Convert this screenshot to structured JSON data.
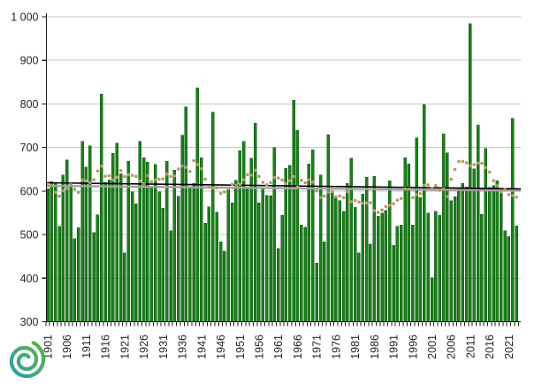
{
  "page": {
    "background": "#ffffff"
  },
  "chart_data": {
    "type": "bar",
    "title": "",
    "xlabel": "",
    "ylabel": "",
    "start_year": 1901,
    "end_year": 2023,
    "values": [
      605,
      622,
      620,
      519,
      637,
      671,
      614,
      490,
      516,
      714,
      655,
      704,
      505,
      545,
      823,
      620,
      626,
      687,
      710,
      640,
      458,
      668,
      598,
      571,
      714,
      676,
      666,
      608,
      661,
      598,
      561,
      668,
      509,
      648,
      588,
      728,
      793,
      608,
      618,
      837,
      676,
      526,
      564,
      781,
      551,
      483,
      462,
      605,
      573,
      625,
      693,
      714,
      606,
      675,
      756,
      573,
      605,
      590,
      589,
      700,
      468,
      544,
      652,
      659,
      808,
      739,
      522,
      517,
      662,
      695,
      435,
      637,
      483,
      729,
      600,
      583,
      578,
      553,
      617,
      675,
      563,
      458,
      593,
      632,
      478,
      634,
      542,
      549,
      556,
      624,
      475,
      519,
      522,
      676,
      662,
      522,
      722,
      585,
      798,
      549,
      401,
      553,
      544,
      731,
      688,
      578,
      587,
      605,
      617,
      609,
      984,
      651,
      752,
      546,
      698,
      608,
      612,
      624,
      600,
      509,
      496,
      767,
      520
    ],
    "y_axis": {
      "min": 300,
      "max": 1000,
      "tick_step": 100,
      "tick_labels": [
        "300",
        "400",
        "500",
        "600",
        "700",
        "800",
        "900",
        "1 000"
      ]
    },
    "x_axis": {
      "label_step": 5,
      "labels": [
        "1901",
        "1906",
        "1911",
        "1916",
        "1921",
        "1926",
        "1931",
        "1936",
        "1941",
        "1946",
        "1951",
        "1956",
        "1961",
        "1966",
        "1971",
        "1976",
        "1981",
        "1986",
        "1991",
        "1996",
        "2001",
        "2006",
        "2011",
        "2016",
        "2021"
      ]
    },
    "series_styles": {
      "bars": {
        "name": "annual-value",
        "color": "#1b7e1b",
        "edge": "#0f5c12"
      },
      "dots": {
        "name": "smoothed-average",
        "color": "#b29a62",
        "window": 11
      },
      "trend_line": {
        "name": "linear-trend",
        "color": "#000000",
        "start_value": 619,
        "end_value": 605
      },
      "second_line": {
        "name": "mean-line",
        "color": "#a3a3a3",
        "start_value": 612,
        "end_value": 601
      }
    },
    "grid": true,
    "gridline_color": "#c6c6c6",
    "axis_color": "#1a1a1a",
    "legend": "none"
  },
  "logo": {
    "label": "spiral-logo",
    "color_start": "#2aa0a8",
    "color_mid": "#47ac72",
    "color_end": "#5db53f"
  }
}
